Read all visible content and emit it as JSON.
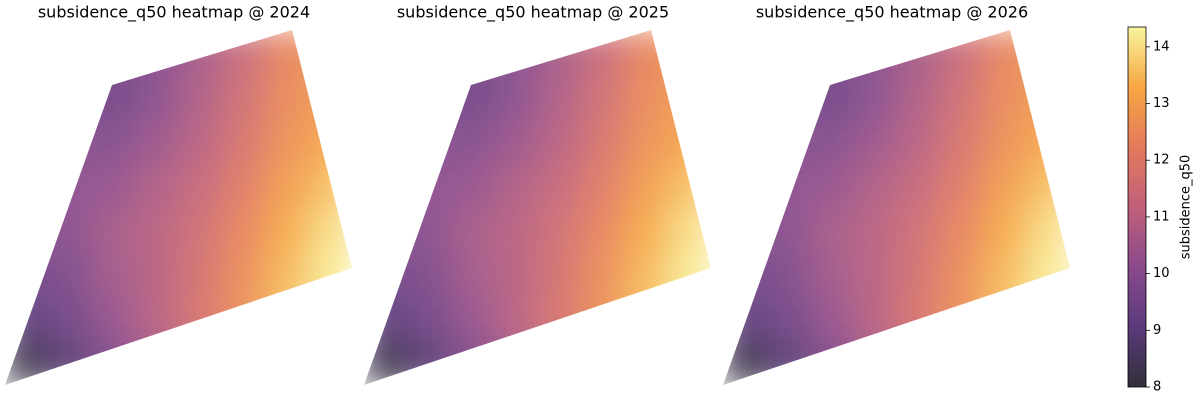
{
  "chart_data": {
    "type": "heatmap",
    "panels": [
      {
        "title": "subsidence_q50 heatmap @ 2024",
        "values": [
          [
            9.6,
            9.6,
            9.6,
            10.0,
            10.6,
            11.4,
            12.4,
            12.9
          ],
          [
            9.8,
            9.7,
            9.5,
            10.0,
            10.8,
            11.6,
            12.5,
            13.0
          ],
          [
            10.0,
            9.9,
            9.9,
            10.4,
            11.0,
            11.8,
            12.7,
            13.2
          ],
          [
            10.1,
            10.1,
            10.3,
            10.8,
            11.3,
            12.1,
            13.0,
            13.6
          ],
          [
            9.9,
            10.0,
            10.6,
            11.0,
            11.6,
            12.4,
            13.3,
            14.0
          ],
          [
            9.5,
            9.8,
            10.5,
            11.0,
            11.7,
            12.6,
            13.5,
            14.2
          ],
          [
            9.0,
            9.5,
            10.3,
            11.0,
            11.8,
            12.7,
            13.6,
            14.3
          ],
          [
            8.2,
            8.9,
            9.8,
            10.6,
            11.4,
            12.3,
            13.2,
            14.0
          ]
        ]
      },
      {
        "title": "subsidence_q50 heatmap @ 2025",
        "values": [
          [
            9.6,
            9.6,
            9.6,
            10.0,
            10.6,
            11.4,
            12.4,
            12.9
          ],
          [
            9.8,
            9.7,
            9.5,
            10.0,
            10.8,
            11.6,
            12.5,
            13.0
          ],
          [
            10.0,
            9.9,
            9.9,
            10.4,
            11.0,
            11.8,
            12.7,
            13.2
          ],
          [
            10.1,
            10.1,
            10.3,
            10.8,
            11.3,
            12.1,
            13.0,
            13.6
          ],
          [
            9.9,
            10.0,
            10.6,
            11.0,
            11.6,
            12.4,
            13.3,
            14.0
          ],
          [
            9.5,
            9.8,
            10.5,
            11.0,
            11.7,
            12.6,
            13.5,
            14.2
          ],
          [
            9.0,
            9.5,
            10.3,
            11.0,
            11.8,
            12.7,
            13.6,
            14.3
          ],
          [
            8.2,
            8.9,
            9.8,
            10.6,
            11.4,
            12.3,
            13.2,
            14.0
          ]
        ]
      },
      {
        "title": "subsidence_q50 heatmap @ 2026",
        "values": [
          [
            9.6,
            9.6,
            9.6,
            10.0,
            10.6,
            11.4,
            12.4,
            12.9
          ],
          [
            9.8,
            9.7,
            9.5,
            10.0,
            10.8,
            11.6,
            12.5,
            13.0
          ],
          [
            10.0,
            9.9,
            9.9,
            10.4,
            11.0,
            11.8,
            12.7,
            13.2
          ],
          [
            10.1,
            10.1,
            10.3,
            10.8,
            11.3,
            12.1,
            13.0,
            13.6
          ],
          [
            9.9,
            10.0,
            10.6,
            11.0,
            11.6,
            12.4,
            13.3,
            14.0
          ],
          [
            9.5,
            9.8,
            10.5,
            11.0,
            11.7,
            12.6,
            13.5,
            14.2
          ],
          [
            9.0,
            9.5,
            10.3,
            11.0,
            11.8,
            12.7,
            13.6,
            14.3
          ],
          [
            8.2,
            8.9,
            9.8,
            10.6,
            11.4,
            12.3,
            13.2,
            14.0
          ]
        ]
      }
    ],
    "zlim": [
      8,
      14.35
    ],
    "zticks": [
      8,
      9,
      10,
      11,
      12,
      13,
      14
    ],
    "colorbar_label": "subsidence_q50",
    "colors": [
      "#322f3a",
      "#5a3a7c",
      "#8a4a8c",
      "#c0607a",
      "#e47a5c",
      "#f7a642",
      "#f8f59e"
    ]
  }
}
